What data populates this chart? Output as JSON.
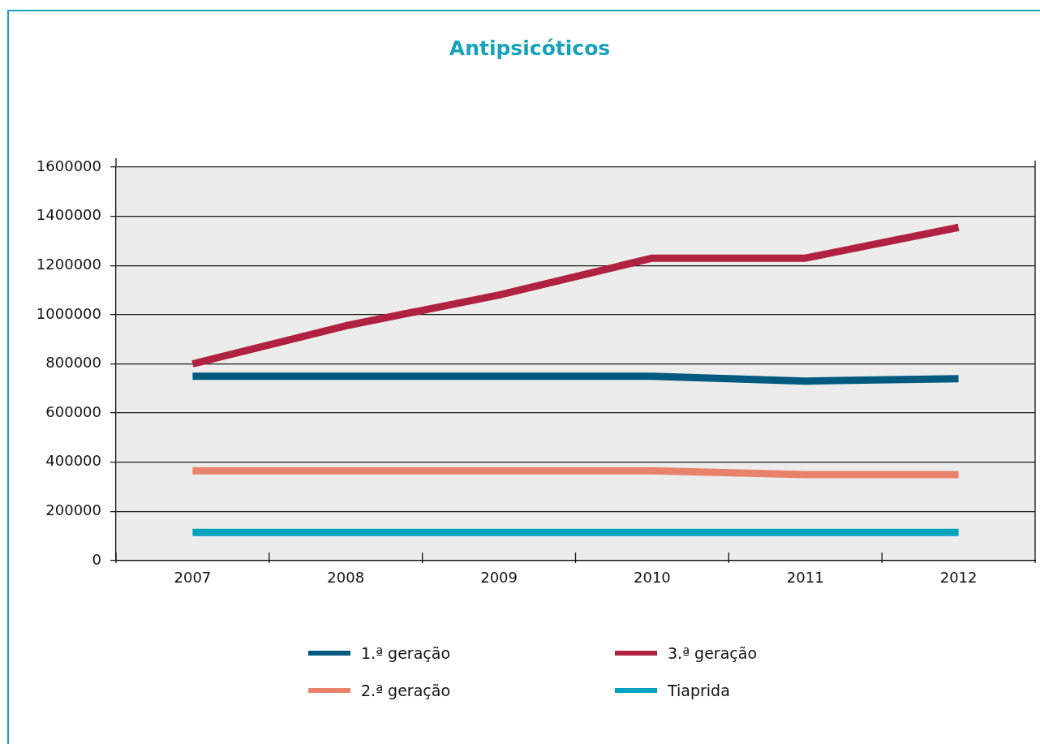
{
  "chart_data": {
    "type": "line",
    "title": "Antipsicóticos",
    "categories": [
      "2007",
      "2008",
      "2009",
      "2010",
      "2011",
      "2012"
    ],
    "series": [
      {
        "name": "1.ª geração",
        "color": "#005a7f",
        "values": [
          750000,
          750000,
          750000,
          750000,
          730000,
          740000
        ]
      },
      {
        "name": "2.ª geração",
        "color": "#e8826b",
        "values": [
          365000,
          365000,
          365000,
          365000,
          350000,
          350000
        ]
      },
      {
        "name": "3.ª geração",
        "color": "#b02240",
        "values": [
          800000,
          955000,
          1080000,
          1230000,
          1230000,
          1355000
        ]
      },
      {
        "name": "Tiaprida",
        "color": "#00a3bd",
        "values": [
          115000,
          115000,
          115000,
          115000,
          115000,
          115000
        ]
      }
    ],
    "ylim": [
      0,
      1600000
    ],
    "yticks": [
      0,
      200000,
      400000,
      600000,
      800000,
      1000000,
      1200000,
      1400000,
      1600000
    ],
    "grid": "y",
    "legend": "bottom",
    "line_style": "solid"
  }
}
